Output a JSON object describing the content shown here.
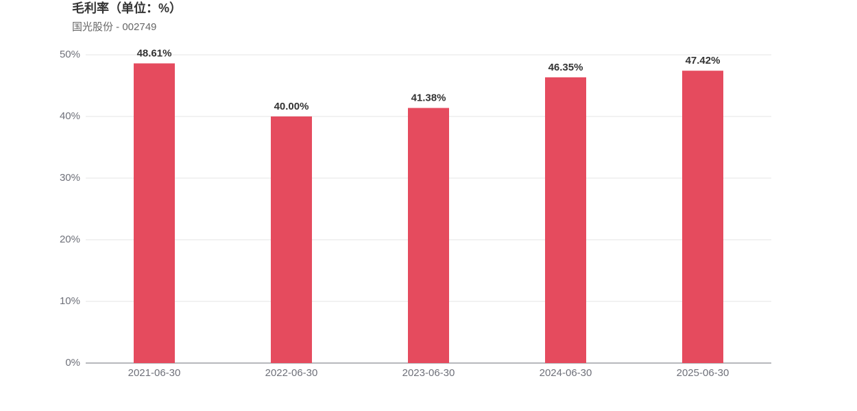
{
  "chart_data": {
    "type": "bar",
    "title": "毛利率（单位：%）",
    "subtitle": "国光股份 - 002749",
    "categories": [
      "2021-06-30",
      "2022-06-30",
      "2023-06-30",
      "2024-06-30",
      "2025-06-30"
    ],
    "values": [
      48.61,
      40.0,
      41.38,
      46.35,
      47.42
    ],
    "value_labels": [
      "48.61%",
      "40.00%",
      "41.38%",
      "46.35%",
      "47.42%"
    ],
    "color": "#e54b5e",
    "ylim": [
      0,
      50
    ],
    "yticks": [
      {
        "value": 0,
        "label": "0%"
      },
      {
        "value": 10,
        "label": "10%"
      },
      {
        "value": 20,
        "label": "20%"
      },
      {
        "value": 30,
        "label": "30%"
      },
      {
        "value": 40,
        "label": "40%"
      },
      {
        "value": 50,
        "label": "50%"
      }
    ],
    "grid": true
  }
}
